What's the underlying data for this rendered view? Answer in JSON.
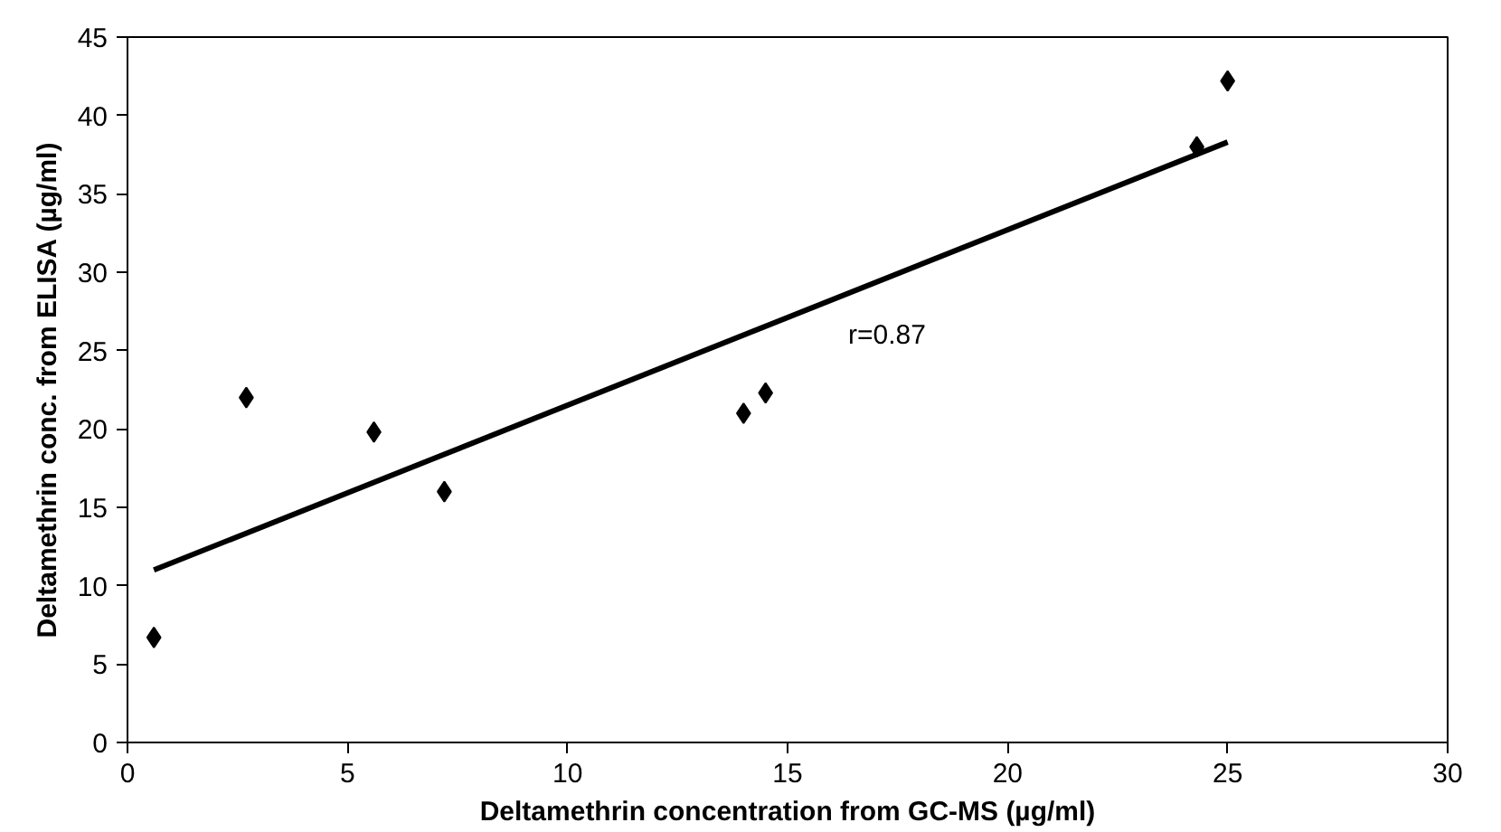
{
  "chart_data": {
    "type": "scatter",
    "xlabel": "Deltamethrin concentration from GC-MS (µg/ml)",
    "ylabel": "Deltamethrin conc. from ELISA (µg/ml)",
    "x": [
      0.6,
      2.7,
      5.6,
      7.2,
      14.0,
      14.5,
      24.3,
      25.0
    ],
    "series": [
      {
        "color": "#000000",
        "values": [
          6.7,
          22.0,
          19.8,
          16.0,
          21.0,
          22.3,
          38.0,
          42.2
        ],
        "marker": "diamond"
      },
      {
        "type": "line",
        "color": "#000000",
        "x": [
          0.6,
          25.0
        ],
        "values": [
          11.0,
          38.3
        ],
        "marker": "none"
      }
    ],
    "annotations": [
      "r=0.87"
    ],
    "xlim": [
      0,
      30
    ],
    "ylim": [
      0,
      45
    ],
    "xticks": [
      0,
      5,
      10,
      15,
      20,
      25,
      30
    ],
    "yticks": [
      0,
      5,
      10,
      15,
      20,
      25,
      30,
      35,
      40,
      45
    ],
    "grid": false,
    "line_style": "solid"
  }
}
